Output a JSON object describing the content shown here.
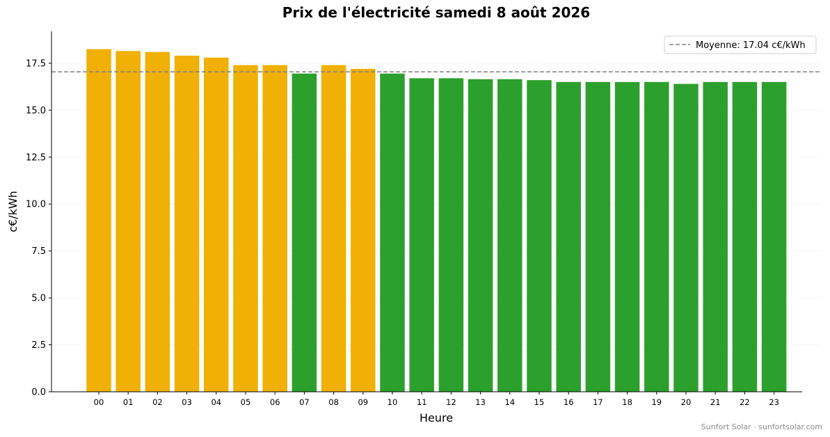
{
  "chart_data": {
    "type": "bar",
    "title": "Prix de l'électricité samedi 8 août 2026",
    "xlabel": "Heure",
    "ylabel": "c€/kWh",
    "ylim": [
      0,
      19.2
    ],
    "yticks": [
      "0.0",
      "2.5",
      "5.0",
      "7.5",
      "10.0",
      "12.5",
      "15.0",
      "17.5"
    ],
    "categories": [
      "00",
      "01",
      "02",
      "03",
      "04",
      "05",
      "06",
      "07",
      "08",
      "09",
      "10",
      "11",
      "12",
      "13",
      "14",
      "15",
      "16",
      "17",
      "18",
      "19",
      "20",
      "21",
      "22",
      "23"
    ],
    "values": [
      18.25,
      18.15,
      18.1,
      17.9,
      17.8,
      17.4,
      17.4,
      16.95,
      17.4,
      17.2,
      16.95,
      16.7,
      16.7,
      16.65,
      16.65,
      16.6,
      16.5,
      16.5,
      16.5,
      16.5,
      16.4,
      16.5,
      16.5,
      16.5
    ],
    "average": 17.04,
    "legend": {
      "label": "Moyenne: 17.04 c€/kWh",
      "position": "top-right"
    },
    "grid": "y-dotted",
    "colors": {
      "above_average": "#f0b004",
      "below_average": "#2ca02c",
      "average_line": "#808080"
    }
  },
  "footer": {
    "credit": "Sunfort Solar · sunfortsolar.com"
  }
}
